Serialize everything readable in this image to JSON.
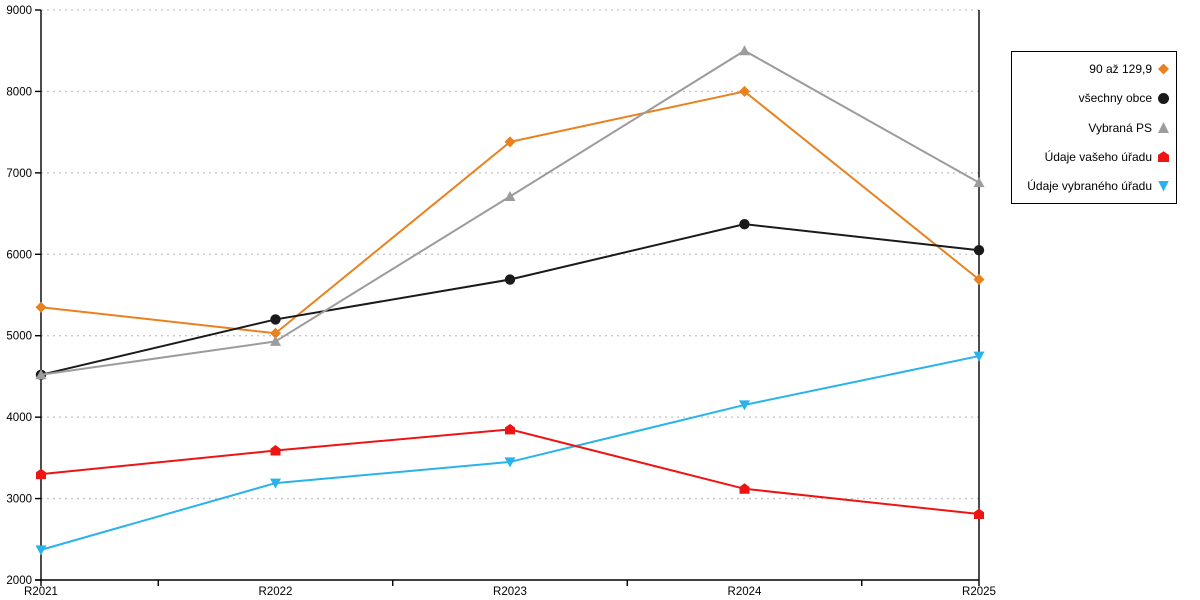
{
  "chart_data": {
    "type": "line",
    "title": "",
    "xlabel": "",
    "ylabel": "",
    "categories": [
      "R2021",
      "R2022",
      "R2023",
      "R2024",
      "R2025"
    ],
    "ylim": [
      2000,
      9000
    ],
    "y_ticks": [
      2000,
      3000,
      4000,
      5000,
      6000,
      7000,
      8000,
      9000
    ],
    "grid": "horizontal-dotted",
    "legend_position": "right",
    "axis_color": "#000000",
    "grid_color": "#c3c3c3",
    "draw_order": [
      0,
      1,
      2,
      4,
      3
    ],
    "series": [
      {
        "name": "90 až 129,9",
        "marker": "diamond",
        "color": "#e8811e",
        "values": [
          5350,
          5030,
          7380,
          8000,
          5690
        ]
      },
      {
        "name": "všechny obce",
        "marker": "circle",
        "color": "#1a1a1a",
        "values": [
          4520,
          5200,
          5690,
          6370,
          6050
        ]
      },
      {
        "name": "Vybraná PS",
        "marker": "triangle-up",
        "color": "#9c9c9c",
        "values": [
          4520,
          4930,
          6710,
          8500,
          6880
        ]
      },
      {
        "name": "Údaje vašeho úřadu",
        "marker": "pentagon",
        "color": "#ee1414",
        "values": [
          3300,
          3590,
          3850,
          3120,
          2810
        ]
      },
      {
        "name": "Údaje vybraného úřadu",
        "marker": "triangle-down",
        "color": "#29b3ea",
        "values": [
          2370,
          3190,
          3450,
          4150,
          4750
        ]
      }
    ]
  }
}
